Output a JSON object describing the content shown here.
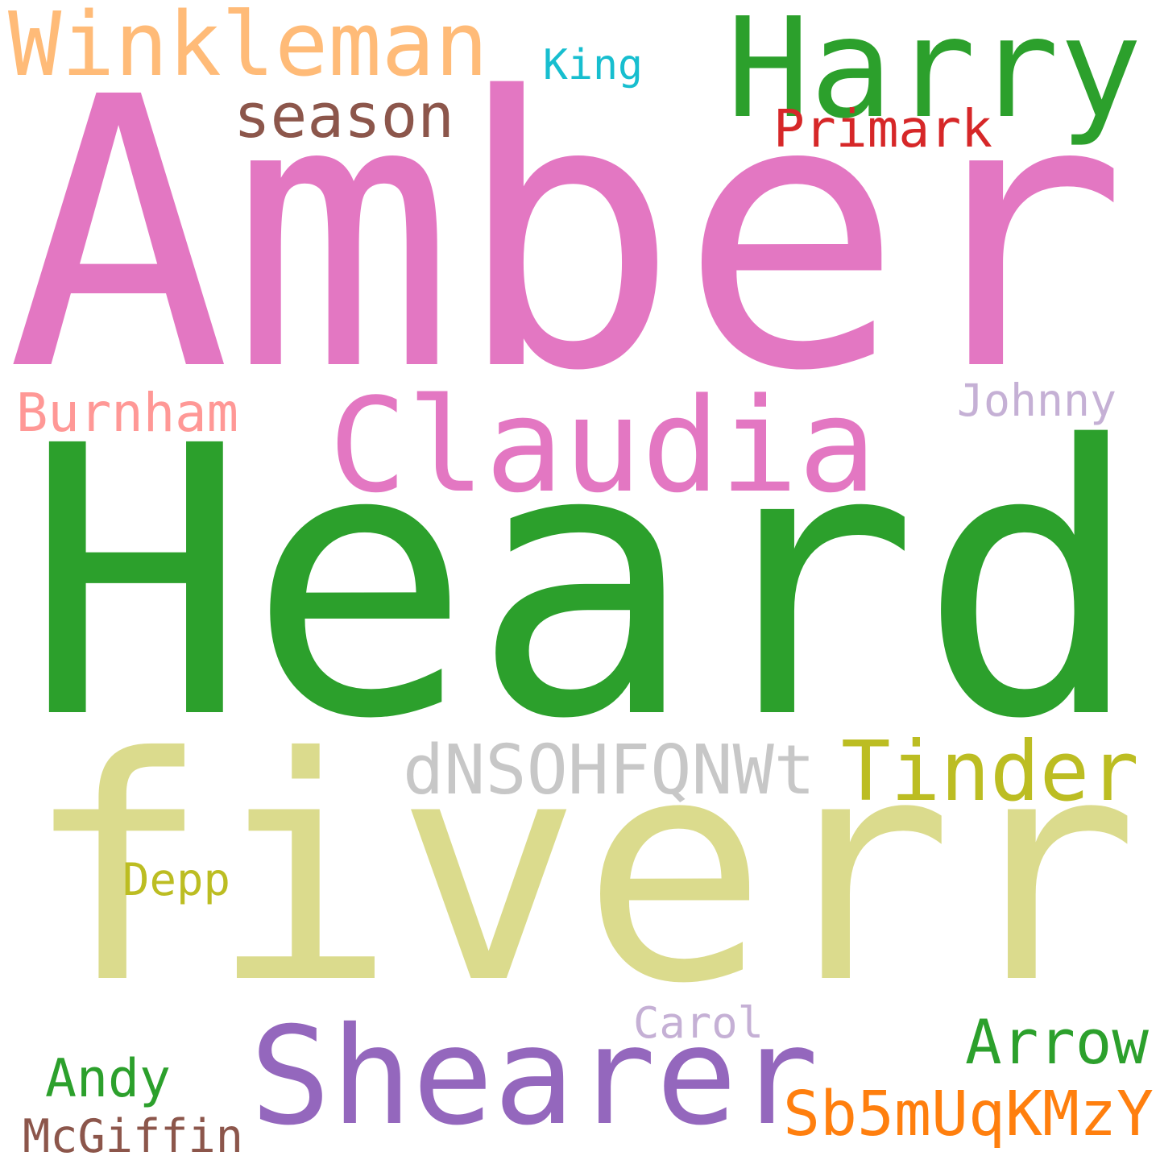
{
  "words": [
    {
      "text": "Amber",
      "color": "#e377c2"
    },
    {
      "text": "Heard",
      "color": "#2ca02c"
    },
    {
      "text": "fiverr",
      "color": "#dbdb8d"
    },
    {
      "text": "Harry",
      "color": "#2ca02c"
    },
    {
      "text": "Winkleman",
      "color": "#ffbb78"
    },
    {
      "text": "King",
      "color": "#17becf"
    },
    {
      "text": "season",
      "color": "#8c564b"
    },
    {
      "text": "Primark",
      "color": "#d62728"
    },
    {
      "text": "Claudia",
      "color": "#e377c2"
    },
    {
      "text": "Burnham",
      "color": "#ff9896"
    },
    {
      "text": "Johnny",
      "color": "#c5b0d5"
    },
    {
      "text": "dNSOHFQNWt",
      "color": "#c7c7c7"
    },
    {
      "text": "Tinder",
      "color": "#bcbd22"
    },
    {
      "text": "Depp",
      "color": "#bcbd22"
    },
    {
      "text": "Carol",
      "color": "#c5b0d5"
    },
    {
      "text": "Shearer",
      "color": "#9467bd"
    },
    {
      "text": "Arrow",
      "color": "#2ca02c"
    },
    {
      "text": "Andy",
      "color": "#2ca02c"
    },
    {
      "text": "Sb5mUqKMzY",
      "color": "#ff7f0e"
    },
    {
      "text": "McGiffin",
      "color": "#8c564b"
    }
  ]
}
